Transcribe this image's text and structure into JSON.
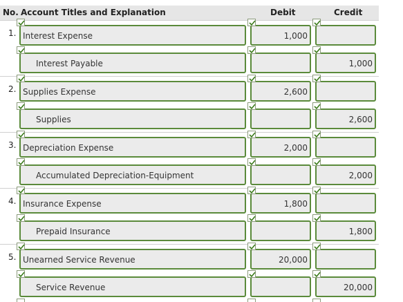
{
  "header": {
    "no": "No.",
    "account": "Account Titles and Explanation",
    "debit": "Debit",
    "credit": "Credit"
  },
  "entries": [
    {
      "number": "1.",
      "debit_account": "Interest Expense",
      "debit_amount": "1,000",
      "credit_account": "Interest Payable",
      "credit_amount": "1,000"
    },
    {
      "number": "2.",
      "debit_account": "Supplies Expense",
      "debit_amount": "2,600",
      "credit_account": "Supplies",
      "credit_amount": "2,600"
    },
    {
      "number": "3.",
      "debit_account": "Depreciation Expense",
      "debit_amount": "2,000",
      "credit_account": "Accumulated Depreciation-Equipment",
      "credit_amount": "2,000"
    },
    {
      "number": "4.",
      "debit_account": "Insurance Expense",
      "debit_amount": "1,800",
      "credit_account": "Prepaid Insurance",
      "credit_amount": "1,800"
    },
    {
      "number": "5.",
      "debit_account": "Unearned Service Revenue",
      "debit_amount": "20,000",
      "credit_account": "Service Revenue",
      "credit_amount": "20,000"
    }
  ]
}
